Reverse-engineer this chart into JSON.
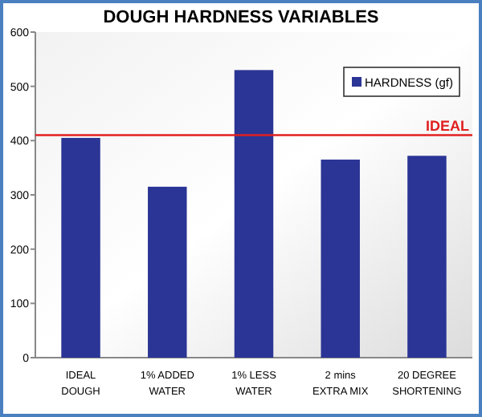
{
  "chart_data": {
    "type": "bar",
    "title": "DOUGH HARDNESS VARIABLES",
    "categories": [
      "IDEAL DOUGH",
      "1% ADDED WATER",
      "1% LESS WATER",
      "2 mins EXTRA MIX",
      "20 DEGREE SHORTENING"
    ],
    "series": [
      {
        "name": "HARDNESS (gf)",
        "color": "#2b3595",
        "values": [
          405,
          315,
          530,
          365,
          372
        ]
      }
    ],
    "ylim": [
      0,
      600
    ],
    "yticks": [
      0,
      100,
      200,
      300,
      400,
      500,
      600
    ],
    "grid": false,
    "legend": "top right",
    "ref_lines": [
      {
        "axis": "y",
        "value": 410,
        "label": "IDEAL",
        "color": "#e02020"
      }
    ]
  }
}
